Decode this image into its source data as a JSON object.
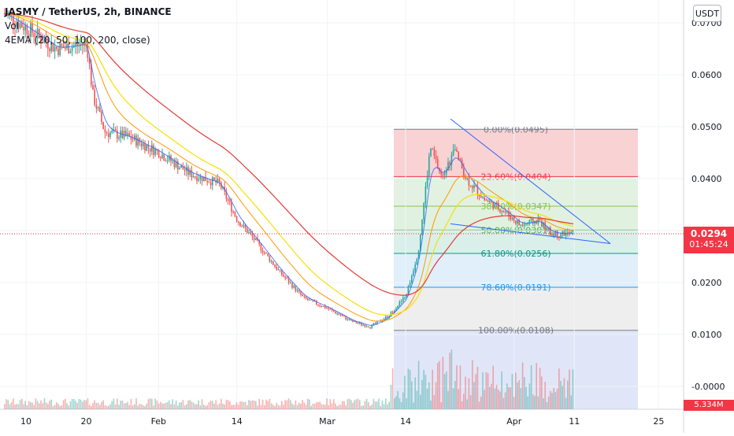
{
  "legend": {
    "symbol": "JASMY / TetherUS, 2h, BINANCE",
    "vol": "Vol",
    "ema": "4EMA (20, 50, 100, 200, close)"
  },
  "currency_button": "USDT",
  "price_tag": {
    "price": "0.0294",
    "countdown": "01:45:24",
    "color": "#f23645"
  },
  "volume_tag": {
    "label": "5.334M",
    "color": "#f23645"
  },
  "colors": {
    "up": "#26a69a",
    "down": "#ef5350",
    "ema20": "#2962ff",
    "ema50": "#ff9800",
    "ema100": "#f5e000",
    "ema200": "#e53935",
    "pattern": "#2962ff"
  },
  "chart_data": {
    "type": "candlestick",
    "x_tick_labels": [
      "10",
      "20",
      "Feb",
      "14",
      "Mar",
      "14",
      "Apr",
      "11",
      "25"
    ],
    "y_tick_labels": [
      "0.0700",
      "0.0600",
      "0.0500",
      "0.0400",
      "0.0300",
      "0.0200",
      "0.0100",
      "-0.0000"
    ],
    "ylim": [
      -0.004,
      0.072
    ],
    "price_series": {
      "x": [
        "Jan 06",
        "Jan 10",
        "Jan 15",
        "Jan 20",
        "Jan 21",
        "Jan 23",
        "Jan 27",
        "Feb 01",
        "Feb 06",
        "Feb 11",
        "Feb 14",
        "Feb 17",
        "Feb 21",
        "Feb 25",
        "Mar 01",
        "Mar 05",
        "Mar 08",
        "Mar 11",
        "Mar 14",
        "Mar 16",
        "Mar 18",
        "Mar 20",
        "Mar 22",
        "Mar 24",
        "Mar 27",
        "Mar 30",
        "Apr 02",
        "Apr 05",
        "Apr 07"
      ],
      "close": [
        0.072,
        0.069,
        0.065,
        0.066,
        0.056,
        0.049,
        0.048,
        0.045,
        0.041,
        0.039,
        0.032,
        0.028,
        0.022,
        0.017,
        0.015,
        0.0125,
        0.0115,
        0.0135,
        0.0175,
        0.026,
        0.046,
        0.04,
        0.0455,
        0.04,
        0.036,
        0.034,
        0.031,
        0.032,
        0.0294
      ]
    },
    "fibonacci": [
      {
        "level": "0.00%",
        "value": 0.0495,
        "color": "#787b86",
        "zone": "#f7c3c6"
      },
      {
        "level": "23.60%",
        "value": 0.0404,
        "color": "#f23645",
        "zone": "#d9ecd8"
      },
      {
        "level": "38.20%",
        "value": 0.0347,
        "color": "#8bc34a",
        "zone": "#d7ecd6"
      },
      {
        "level": "50.00%",
        "value": 0.0301,
        "color": "#4caf50",
        "zone": "#cfe9e3"
      },
      {
        "level": "61.80%",
        "value": 0.0256,
        "color": "#089981",
        "zone": "#d6e9f7"
      },
      {
        "level": "78.60%",
        "value": 0.0191,
        "color": "#2196f3",
        "zone": "#e8e8e8"
      },
      {
        "level": "100.00%",
        "value": 0.0108,
        "color": "#787b86",
        "zone": "#d5def4"
      }
    ],
    "grid": true,
    "legend": "top-left"
  }
}
